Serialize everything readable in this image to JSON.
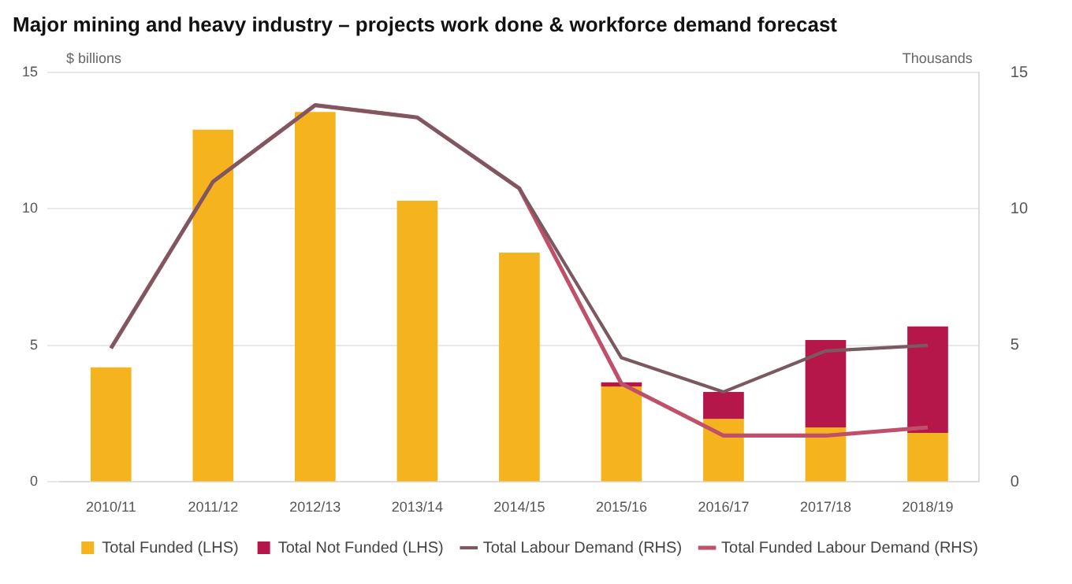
{
  "chart_data": {
    "type": "bar",
    "title": "Major mining and heavy industry – projects work done & workforce demand forecast",
    "ylabel": "$ billions",
    "y2label": "Thousands",
    "categories": [
      "2010/11",
      "2011/12",
      "2012/13",
      "2013/14",
      "2014/15",
      "2015/16",
      "2016/17",
      "2017/18",
      "2018/19"
    ],
    "stacked": true,
    "series": [
      {
        "name": "Total Funded (LHS)",
        "color": "#f5b41e",
        "values": [
          4.2,
          12.9,
          13.55,
          10.3,
          8.4,
          3.5,
          2.3,
          2.0,
          1.8
        ]
      },
      {
        "name": "Total Not Funded (LHS)",
        "color": "#b5174a",
        "values": [
          null,
          null,
          null,
          null,
          null,
          0.15,
          1.0,
          3.2,
          3.9
        ]
      },
      {
        "name": "Total Labour Demand (RHS)",
        "type": "line",
        "axis": "y2",
        "color": "#7a5a60",
        "values": [
          4.9,
          11.0,
          13.8,
          13.35,
          10.75,
          4.55,
          3.3,
          4.8,
          5.0
        ]
      },
      {
        "name": "Total Funded Labour Demand (RHS)",
        "type": "line",
        "axis": "y2",
        "color": "#c0506a",
        "values": [
          4.9,
          11.0,
          13.8,
          13.35,
          10.75,
          3.6,
          1.7,
          1.7,
          2.0
        ]
      }
    ],
    "ylim": [
      0,
      15
    ],
    "yticks": [
      0,
      5,
      10,
      15
    ],
    "y2lim": [
      0,
      15
    ],
    "y2ticks": [
      0,
      5,
      10,
      15
    ],
    "grid": "y",
    "legend": "bottom",
    "marker": "none",
    "line_style": "solid"
  }
}
